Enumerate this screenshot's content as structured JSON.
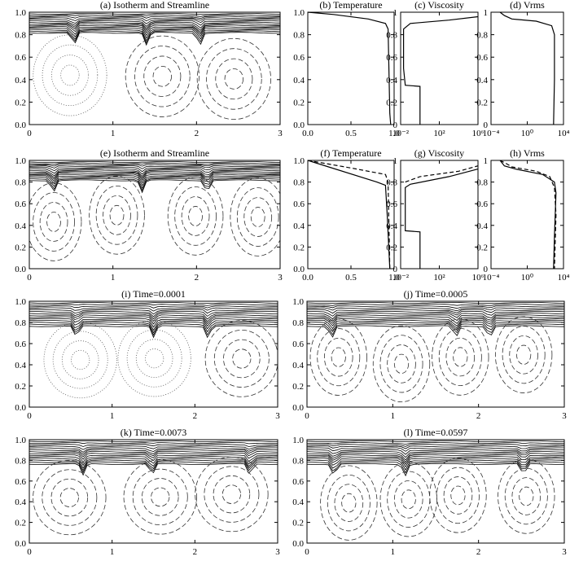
{
  "chart_data": [
    {
      "type": "contour",
      "title": "(a) Isotherm and Streamline",
      "xlim": [
        0,
        3
      ],
      "ylim": [
        0,
        1
      ],
      "xticks": [
        0,
        1,
        2,
        3
      ],
      "yticks": [
        {
          "value": 0,
          "label": "0.0"
        },
        {
          "value": 0.2,
          "label": "0.2"
        },
        {
          "value": 0.4,
          "label": "0.4"
        },
        {
          "value": 0.6,
          "label": "0.6"
        },
        {
          "value": 0.8,
          "label": "0.8"
        },
        {
          "value": 1,
          "label": "1.0"
        }
      ]
    },
    {
      "type": "line",
      "title": "(b) Temperature",
      "xlim": [
        0,
        1
      ],
      "ylim": [
        0,
        1
      ],
      "xticks": [
        {
          "value": 0,
          "label": "0.0"
        },
        {
          "value": 0.5,
          "label": "0.5"
        },
        {
          "value": 1,
          "label": "1.0"
        }
      ],
      "yticks": [
        {
          "value": 0,
          "label": "0.0"
        },
        {
          "value": 0.2,
          "label": "0.2"
        },
        {
          "value": 0.4,
          "label": "0.4"
        },
        {
          "value": 0.6,
          "label": "0.6"
        },
        {
          "value": 0.8,
          "label": "0.8"
        },
        {
          "value": 1,
          "label": "1.0"
        }
      ],
      "series": [
        {
          "style": "solid",
          "x": [
            0,
            0.3,
            0.7,
            0.9,
            0.93,
            0.94,
            0.95,
            0.96
          ],
          "values": [
            1,
            0.98,
            0.94,
            0.9,
            0.85,
            0.5,
            0.1,
            0
          ]
        }
      ]
    },
    {
      "type": "line",
      "title": "(c) Viscosity",
      "xscale": "log",
      "xlim": [
        0.01,
        1000000
      ],
      "ylim": [
        0,
        1
      ],
      "xticks": [
        {
          "value": 0.01,
          "label": "10⁻²"
        },
        {
          "value": 100,
          "label": "10²"
        },
        {
          "value": 1000000,
          "label": "10⁶"
        }
      ],
      "yticks": [
        0,
        0.2,
        0.4,
        0.6,
        0.8,
        1
      ],
      "series": [
        {
          "style": "solid",
          "x": [
            1,
            1,
            0.03,
            0.02,
            0.02,
            0.1,
            1000,
            1000000
          ],
          "values": [
            0,
            0.34,
            0.35,
            0.5,
            0.85,
            0.9,
            0.93,
            0.96
          ]
        }
      ]
    },
    {
      "type": "line",
      "title": "(d) Vrms",
      "xscale": "log",
      "xlim": [
        0.0001,
        10000
      ],
      "ylim": [
        0,
        1
      ],
      "xticks": [
        {
          "value": 0.0001,
          "label": "10⁻⁴"
        },
        {
          "value": 1,
          "label": "10⁰"
        },
        {
          "value": 10000,
          "label": "10⁴"
        }
      ],
      "yticks": [
        0,
        0.2,
        0.4,
        0.6,
        0.8,
        1
      ],
      "series": [
        {
          "style": "solid",
          "x": [
            0.001,
            0.003,
            0.02,
            10,
            500,
            1000,
            1000,
            800
          ],
          "values": [
            1,
            0.97,
            0.94,
            0.92,
            0.88,
            0.8,
            0.4,
            0
          ]
        }
      ]
    },
    {
      "type": "contour",
      "title": "(e) Isotherm and Streamline",
      "xlim": [
        0,
        3
      ],
      "ylim": [
        0,
        1
      ],
      "xticks": [
        0,
        1,
        2,
        3
      ],
      "yticks": [
        {
          "value": 0,
          "label": "0.0"
        },
        {
          "value": 0.2,
          "label": "0.2"
        },
        {
          "value": 0.4,
          "label": "0.4"
        },
        {
          "value": 0.6,
          "label": "0.6"
        },
        {
          "value": 0.8,
          "label": "0.8"
        },
        {
          "value": 1,
          "label": "1.0"
        }
      ]
    },
    {
      "type": "line",
      "title": "(f) Temperature",
      "xlim": [
        0,
        1
      ],
      "ylim": [
        0,
        1
      ],
      "xticks": [
        {
          "value": 0,
          "label": "0.0"
        },
        {
          "value": 0.5,
          "label": "0.5"
        },
        {
          "value": 1,
          "label": "1.0"
        }
      ],
      "yticks": [
        {
          "value": 0,
          "label": "0.0"
        },
        {
          "value": 0.2,
          "label": "0.2"
        },
        {
          "value": 0.4,
          "label": "0.4"
        },
        {
          "value": 0.6,
          "label": "0.6"
        },
        {
          "value": 0.8,
          "label": "0.8"
        },
        {
          "value": 1,
          "label": "1.0"
        }
      ],
      "series": [
        {
          "style": "solid",
          "x": [
            0,
            0.8,
            0.9,
            0.92,
            0.95
          ],
          "values": [
            1,
            0.8,
            0.77,
            0.5,
            0
          ]
        },
        {
          "style": "dashed",
          "x": [
            0,
            0.5,
            0.9,
            0.93,
            0.95
          ],
          "values": [
            1,
            0.93,
            0.87,
            0.8,
            0
          ]
        }
      ]
    },
    {
      "type": "line",
      "title": "(g) Viscosity",
      "xscale": "log",
      "xlim": [
        0.01,
        1000000
      ],
      "ylim": [
        0,
        1
      ],
      "xticks": [
        {
          "value": 0.01,
          "label": "10⁻²"
        },
        {
          "value": 100,
          "label": "10²"
        },
        {
          "value": 1000000,
          "label": "10⁶"
        }
      ],
      "yticks": [
        0,
        0.2,
        0.4,
        0.6,
        0.8,
        1
      ],
      "series": [
        {
          "style": "solid",
          "x": [
            1,
            1,
            0.03,
            0.03,
            0.1,
            1000,
            1000000
          ],
          "values": [
            0,
            0.34,
            0.35,
            0.75,
            0.78,
            0.85,
            0.92
          ]
        },
        {
          "style": "dashed",
          "x": [
            0.03,
            1,
            10000,
            1000000
          ],
          "values": [
            0.8,
            0.85,
            0.9,
            0.95
          ]
        }
      ]
    },
    {
      "type": "line",
      "title": "(h) Vrms",
      "xscale": "log",
      "xlim": [
        0.0001,
        10000
      ],
      "ylim": [
        0,
        1
      ],
      "xticks": [
        {
          "value": 0.0001,
          "label": "10⁻⁴"
        },
        {
          "value": 1,
          "label": "10⁰"
        },
        {
          "value": 10000,
          "label": "10⁴"
        }
      ],
      "yticks": [
        0,
        0.2,
        0.4,
        0.6,
        0.8,
        1
      ],
      "series": [
        {
          "style": "solid",
          "x": [
            0.001,
            0.003,
            0.05,
            50,
            1000,
            1500,
            1000,
            800
          ],
          "values": [
            1,
            0.95,
            0.92,
            0.87,
            0.8,
            0.7,
            0.3,
            0
          ]
        },
        {
          "style": "dashed",
          "x": [
            0.001,
            0.005,
            0.02,
            10,
            300,
            1000,
            1500,
            1000
          ],
          "values": [
            1,
            0.97,
            0.94,
            0.9,
            0.85,
            0.75,
            0.5,
            0
          ]
        }
      ]
    },
    {
      "type": "contour",
      "title": "(i) Time=0.0001",
      "xlim": [
        0,
        3
      ],
      "ylim": [
        0,
        1
      ],
      "xticks": [
        0,
        1,
        2,
        3
      ],
      "yticks": [
        {
          "value": 0,
          "label": "0.0"
        },
        {
          "value": 0.2,
          "label": "0.2"
        },
        {
          "value": 0.4,
          "label": "0.4"
        },
        {
          "value": 0.6,
          "label": "0.6"
        },
        {
          "value": 0.8,
          "label": "0.8"
        },
        {
          "value": 1,
          "label": "1.0"
        }
      ]
    },
    {
      "type": "contour",
      "title": "(j) Time=0.0005",
      "xlim": [
        0,
        3
      ],
      "ylim": [
        0,
        1
      ],
      "xticks": [
        0,
        1,
        2,
        3
      ],
      "yticks": [
        {
          "value": 0,
          "label": "0.0"
        },
        {
          "value": 0.2,
          "label": "0.2"
        },
        {
          "value": 0.4,
          "label": "0.4"
        },
        {
          "value": 0.6,
          "label": "0.6"
        },
        {
          "value": 0.8,
          "label": "0.8"
        },
        {
          "value": 1,
          "label": "1.0"
        }
      ]
    },
    {
      "type": "contour",
      "title": "(k) Time=0.0073",
      "xlim": [
        0,
        3
      ],
      "ylim": [
        0,
        1
      ],
      "xticks": [
        0,
        1,
        2,
        3
      ],
      "yticks": [
        {
          "value": 0,
          "label": "0.0"
        },
        {
          "value": 0.2,
          "label": "0.2"
        },
        {
          "value": 0.4,
          "label": "0.4"
        },
        {
          "value": 0.6,
          "label": "0.6"
        },
        {
          "value": 0.8,
          "label": "0.8"
        },
        {
          "value": 1,
          "label": "1.0"
        }
      ]
    },
    {
      "type": "contour",
      "title": "(l) Time=0.0597",
      "xlim": [
        0,
        3
      ],
      "ylim": [
        0,
        1
      ],
      "xticks": [
        0,
        1,
        2,
        3
      ],
      "yticks": [
        {
          "value": 0,
          "label": "0.0"
        },
        {
          "value": 0.2,
          "label": "0.2"
        },
        {
          "value": 0.4,
          "label": "0.4"
        },
        {
          "value": 0.6,
          "label": "0.6"
        },
        {
          "value": 0.8,
          "label": "0.8"
        },
        {
          "value": 1,
          "label": "1.0"
        }
      ]
    }
  ]
}
